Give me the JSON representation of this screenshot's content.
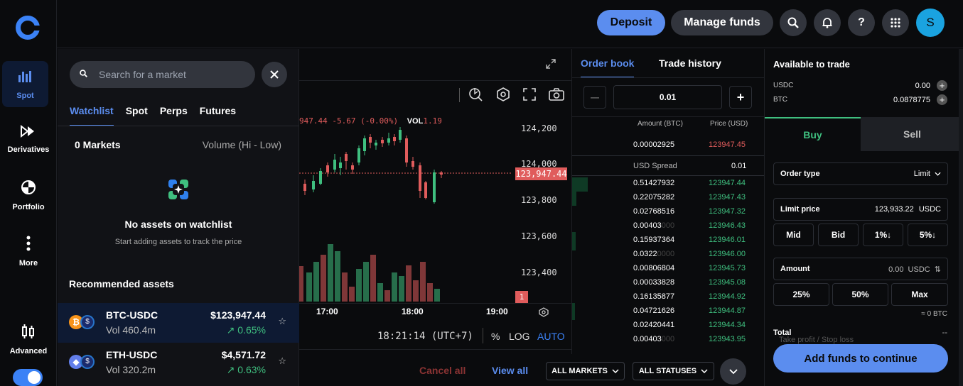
{
  "rail": {
    "items": [
      {
        "label": "Spot",
        "icon": "bar-chart-icon"
      },
      {
        "label": "Derivatives",
        "icon": "fast-forward-icon"
      },
      {
        "label": "Portfolio",
        "icon": "pie-chart-icon"
      },
      {
        "label": "More",
        "icon": "more-vertical-icon"
      },
      {
        "label": "Advanced",
        "icon": "candles-icon"
      }
    ]
  },
  "topbar": {
    "deposit_label": "Deposit",
    "manage_label": "Manage funds",
    "help_label": "?",
    "avatar_letter": "S"
  },
  "search": {
    "placeholder": "Search for a market",
    "tabs": [
      "Watchlist",
      "Spot",
      "Perps",
      "Futures"
    ],
    "markets_count": "0 Markets",
    "sort_label": "Volume (Hi - Low)",
    "empty_title": "No assets on watchlist",
    "empty_subtitle": "Start adding assets to track the price",
    "recommended_title": "Recommended assets",
    "assets": [
      {
        "pair": "BTC-USDC",
        "volume": "Vol 460.4m",
        "price": "$123,947.44",
        "change": "↗ 0.65%"
      },
      {
        "pair": "ETH-USDC",
        "volume": "Vol 320.2m",
        "price": "$4,571.72",
        "change": "↗ 0.63%"
      }
    ]
  },
  "chart": {
    "legend_values": "947.44 -5.67 (-0.00%)",
    "vol_label": "VOL",
    "vol_value": "1.19",
    "price_ticks": [
      "124,200",
      "124,000",
      "123,800",
      "123,600",
      "123,400"
    ],
    "current_price": "123,947.44",
    "volume_badge": "1",
    "time_ticks": [
      "17:00",
      "18:00",
      "19:00"
    ],
    "clock": "18:21:14 (UTC+7)",
    "percent_label": "%",
    "log_label": "LOG",
    "auto_label": "AUTO"
  },
  "orderbook": {
    "tab_book": "Order book",
    "tab_history": "Trade history",
    "minus_label": "—",
    "plus_label": "+",
    "increment": "0.01",
    "col_amount": "Amount (BTC)",
    "col_price": "Price (USD)",
    "ask_rows": [
      {
        "amount": "0.00002925",
        "price": "123947.45"
      }
    ],
    "spread_label": "USD Spread",
    "spread_value": "0.01",
    "bid_rows": [
      {
        "amount": "0.51427932",
        "price": "123947.44"
      },
      {
        "amount": "0.22075282",
        "price": "123947.43"
      },
      {
        "amount": "0.02768516",
        "price": "123947.32"
      },
      {
        "amount": "0.00403",
        "dim": "000",
        "price": "123946.43"
      },
      {
        "amount": "0.15937364",
        "price": "123946.01"
      },
      {
        "amount": "0.0322",
        "dim": "0000",
        "price": "123946.00"
      },
      {
        "amount": "0.00806804",
        "price": "123945.73"
      },
      {
        "amount": "0.00033828",
        "price": "123945.08"
      },
      {
        "amount": "0.16135877",
        "price": "123944.92"
      },
      {
        "amount": "0.04721626",
        "price": "123944.87"
      },
      {
        "amount": "0.02420441",
        "price": "123944.34"
      },
      {
        "amount": "0.00403",
        "dim": "000",
        "price": "123943.95"
      }
    ]
  },
  "bottombar": {
    "cancel_all": "Cancel all",
    "view_all": "View all",
    "all_markets": "ALL MARKETS",
    "all_statuses": "ALL STATUSES"
  },
  "trade": {
    "title": "Available to trade",
    "balances": [
      {
        "asset": "USDC",
        "amount": "0.00"
      },
      {
        "asset": "BTC",
        "amount": "0.0878775"
      }
    ],
    "buy_label": "Buy",
    "sell_label": "Sell",
    "order_type_label": "Order type",
    "order_type_value": "Limit",
    "limit_price_label": "Limit price",
    "limit_price_value": "123,933.22",
    "limit_price_unit": "USDC",
    "quick_buttons": [
      "Mid",
      "Bid",
      "1%↓",
      "5%↓"
    ],
    "amount_label": "Amount",
    "amount_value": "0.00",
    "amount_unit": "USDC",
    "pct_buttons": [
      "25%",
      "50%",
      "Max"
    ],
    "approx_btc": "≈ 0 BTC",
    "total_label": "Total",
    "total_value": "--",
    "tp_sl_label": "Take profit / Stop loss",
    "submit_label": "Add funds to continue"
  }
}
